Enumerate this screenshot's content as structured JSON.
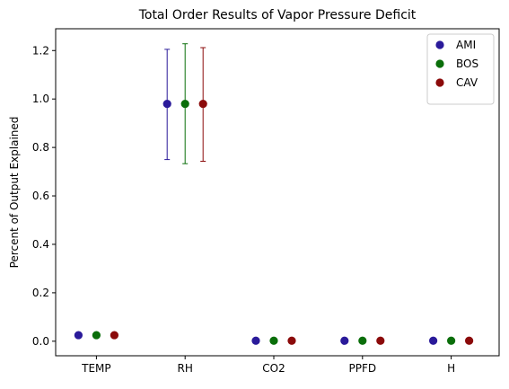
{
  "chart_data": {
    "type": "scatter",
    "title": "Total Order Results of Vapor Pressure Deficit",
    "xlabel": "",
    "ylabel": "Percent of Output Explained",
    "categories": [
      "TEMP",
      "RH",
      "CO2",
      "PPFD",
      "H"
    ],
    "ylim": [
      -0.06,
      1.29
    ],
    "yticks": [
      "0.0",
      "0.2",
      "0.4",
      "0.6",
      "0.8",
      "1.0",
      "1.2"
    ],
    "grid": false,
    "legend_position": "top-right",
    "series": [
      {
        "name": "AMI",
        "color": "#2a1a9a",
        "values": [
          0.025,
          0.98,
          0.002,
          0.002,
          0.002
        ],
        "err_low": [
          null,
          0.75,
          null,
          null,
          null
        ],
        "err_high": [
          null,
          1.205,
          null,
          null,
          null
        ]
      },
      {
        "name": "BOS",
        "color": "#0a6e0a",
        "values": [
          0.025,
          0.98,
          0.002,
          0.002,
          0.002
        ],
        "err_low": [
          null,
          0.733,
          null,
          null,
          null
        ],
        "err_high": [
          null,
          1.228,
          null,
          null,
          null
        ]
      },
      {
        "name": "CAV",
        "color": "#8b0a0a",
        "values": [
          0.025,
          0.98,
          0.002,
          0.002,
          0.002
        ],
        "err_low": [
          null,
          0.743,
          null,
          null,
          null
        ],
        "err_high": [
          null,
          1.212,
          null,
          null,
          null
        ]
      }
    ]
  }
}
